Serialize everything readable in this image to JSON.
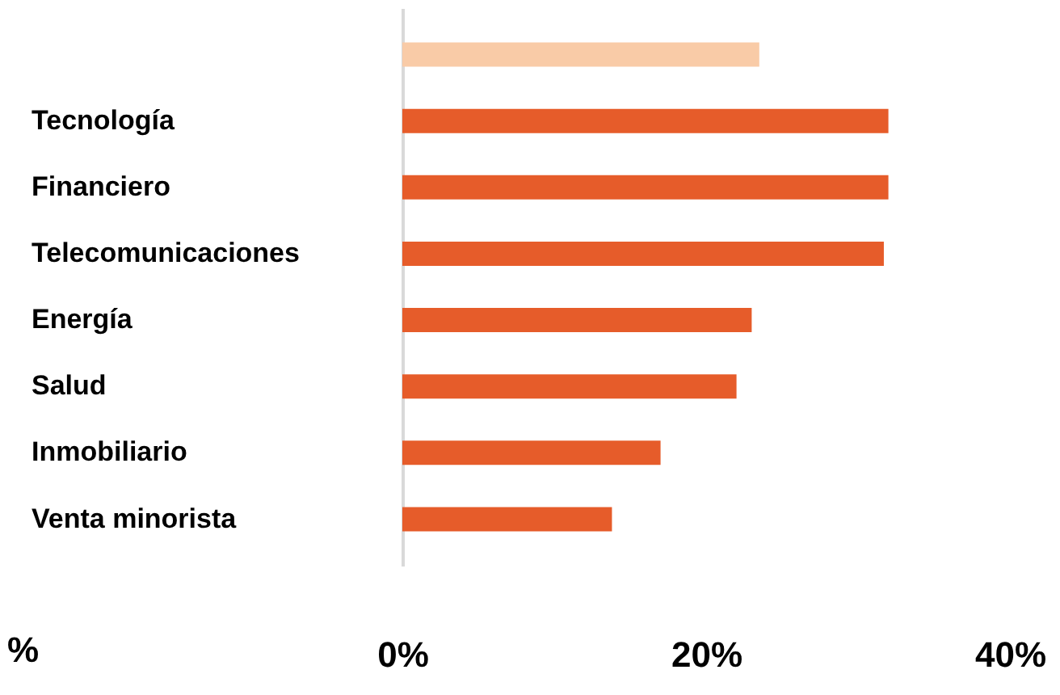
{
  "chart_data": {
    "type": "bar",
    "orientation": "horizontal",
    "xlabel": "%",
    "categories": [
      null,
      "Tecnología",
      "Financiero",
      "Telecomunicaciones",
      "Energía",
      "Salud",
      "Inmobiliario",
      "Venta minorista"
    ],
    "values": [
      23.5,
      32,
      32,
      31.7,
      23,
      22,
      17,
      13.8
    ],
    "colors": [
      "#f9cba7",
      "#e65c2a",
      "#e65c2a",
      "#e65c2a",
      "#e65c2a",
      "#e65c2a",
      "#e65c2a",
      "#e65c2a"
    ],
    "xlim": [
      0,
      40
    ],
    "xticks": [
      {
        "value": 0,
        "label": "0%"
      },
      {
        "value": 20,
        "label": "20%"
      },
      {
        "value": 40,
        "label": "40%"
      }
    ],
    "grid": false
  }
}
